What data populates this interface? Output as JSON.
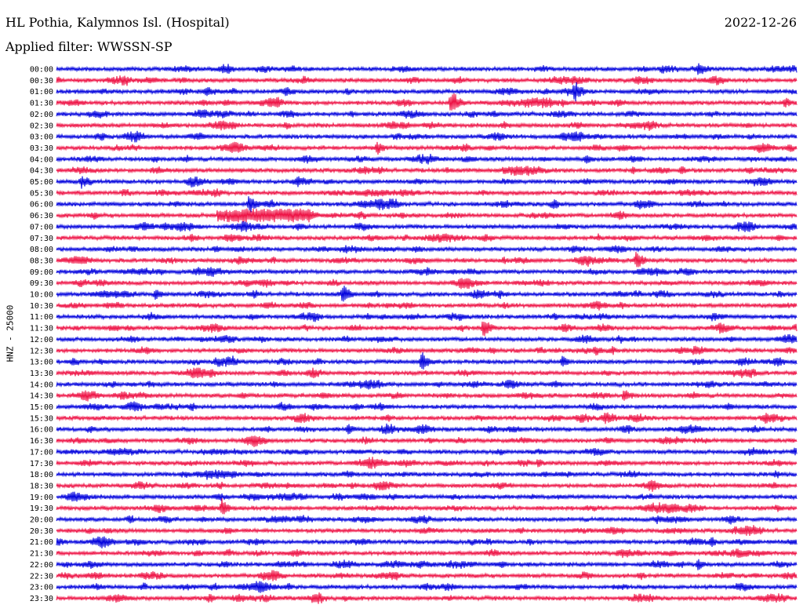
{
  "header": {
    "station": "HL Pothia, Kalymnos Isl. (Hospital)",
    "date": "2022-12-26",
    "filter": "Applied filter: WWSSN-SP"
  },
  "chart_data": {
    "type": "line",
    "title": "HL Pothia, Kalymnos Isl. (Hospital)",
    "subtitle": "Applied filter: WWSSN-SP",
    "ylabel": "HNZ - 25000",
    "xlabel": "",
    "rows": [
      "00:00",
      "00:30",
      "01:00",
      "01:30",
      "02:00",
      "02:30",
      "03:00",
      "03:30",
      "04:00",
      "04:30",
      "05:00",
      "05:30",
      "06:00",
      "06:30",
      "07:00",
      "07:30",
      "08:00",
      "08:30",
      "09:00",
      "09:30",
      "10:00",
      "10:30",
      "11:00",
      "11:30",
      "12:00",
      "12:30",
      "13:00",
      "13:30",
      "14:00",
      "14:30",
      "15:00",
      "15:30",
      "16:00",
      "16:30",
      "17:00",
      "17:30",
      "18:00",
      "18:30",
      "19:00",
      "19:30",
      "20:00",
      "20:30",
      "21:00",
      "21:30",
      "22:00",
      "22:30",
      "23:00",
      "23:30"
    ],
    "row_minutes": 30,
    "colors": [
      "#0000dd",
      "#ee1144"
    ],
    "grid": false,
    "events": [
      {
        "row": "00:00",
        "minute": 26,
        "amp": 0.6
      },
      {
        "row": "00:30",
        "minute": 10,
        "amp": 0.5
      },
      {
        "row": "01:00",
        "minute": 21,
        "amp": 1.1
      },
      {
        "row": "01:30",
        "minute": 16,
        "amp": 1.4
      },
      {
        "row": "01:30",
        "minute": 20.5,
        "amp": 0.5
      },
      {
        "row": "01:30",
        "minute": 29.5,
        "amp": 0.6
      },
      {
        "row": "03:30",
        "minute": 13,
        "amp": 0.7
      },
      {
        "row": "03:30",
        "minute": 23,
        "amp": 0.5
      },
      {
        "row": "05:00",
        "minute": 1,
        "amp": 0.7
      },
      {
        "row": "06:00",
        "minute": 7.8,
        "amp": 1.0
      },
      {
        "row": "06:30",
        "minute": 6.5,
        "amp": 0.9,
        "duration": 3.8
      },
      {
        "row": "05:30",
        "minute": 11,
        "amp": 0.35,
        "duration": 3
      },
      {
        "row": "08:30",
        "minute": 23.5,
        "amp": 1.0
      },
      {
        "row": "10:00",
        "minute": 4,
        "amp": 0.6
      },
      {
        "row": "10:00",
        "minute": 11.6,
        "amp": 1.0
      },
      {
        "row": "11:30",
        "minute": 17.3,
        "amp": 1.0
      },
      {
        "row": "13:00",
        "minute": 14.8,
        "amp": 1.0
      },
      {
        "row": "13:00",
        "minute": 20.5,
        "amp": 0.6
      },
      {
        "row": "14:30",
        "minute": 23,
        "amp": 0.8
      },
      {
        "row": "16:00",
        "minute": 11.8,
        "amp": 0.6
      },
      {
        "row": "17:30",
        "minute": 19.5,
        "amp": 0.5
      },
      {
        "row": "19:30",
        "minute": 6.7,
        "amp": 1.0
      },
      {
        "row": "21:00",
        "minute": 26.5,
        "amp": 0.6
      },
      {
        "row": "22:00",
        "minute": 26,
        "amp": 0.6
      }
    ]
  }
}
